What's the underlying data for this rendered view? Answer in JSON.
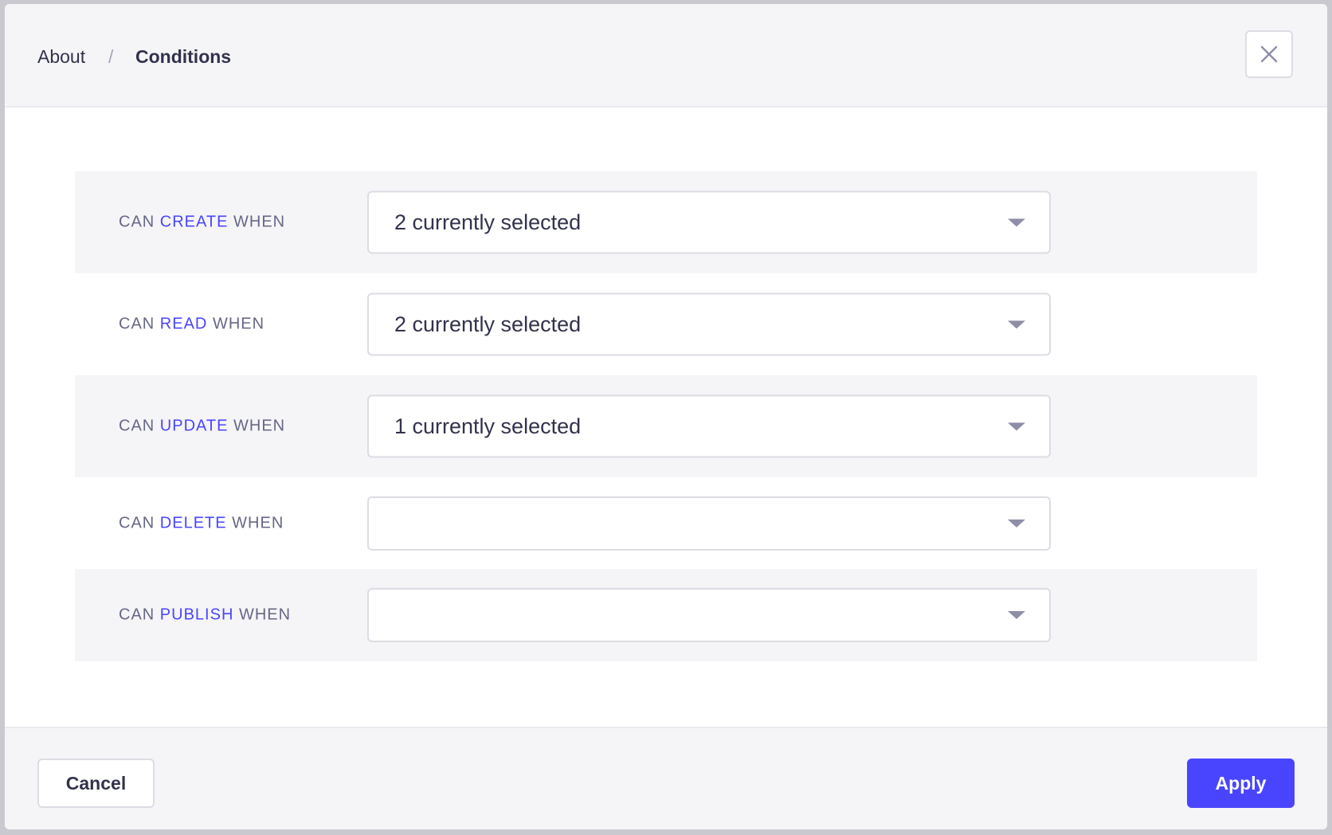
{
  "breadcrumb": {
    "parent": "About",
    "separator": "/",
    "current": "Conditions"
  },
  "close_icon": "close-icon",
  "accent_color": "#4945ff",
  "rows": [
    {
      "prefix": "CAN",
      "action": "CREATE",
      "suffix": "WHEN",
      "value": "2 currently selected"
    },
    {
      "prefix": "CAN",
      "action": "READ",
      "suffix": "WHEN",
      "value": "2 currently selected"
    },
    {
      "prefix": "CAN",
      "action": "UPDATE",
      "suffix": "WHEN",
      "value": "1 currently selected"
    },
    {
      "prefix": "CAN",
      "action": "DELETE",
      "suffix": "WHEN",
      "value": ""
    },
    {
      "prefix": "CAN",
      "action": "PUBLISH",
      "suffix": "WHEN",
      "value": ""
    }
  ],
  "footer": {
    "cancel_label": "Cancel",
    "apply_label": "Apply"
  }
}
